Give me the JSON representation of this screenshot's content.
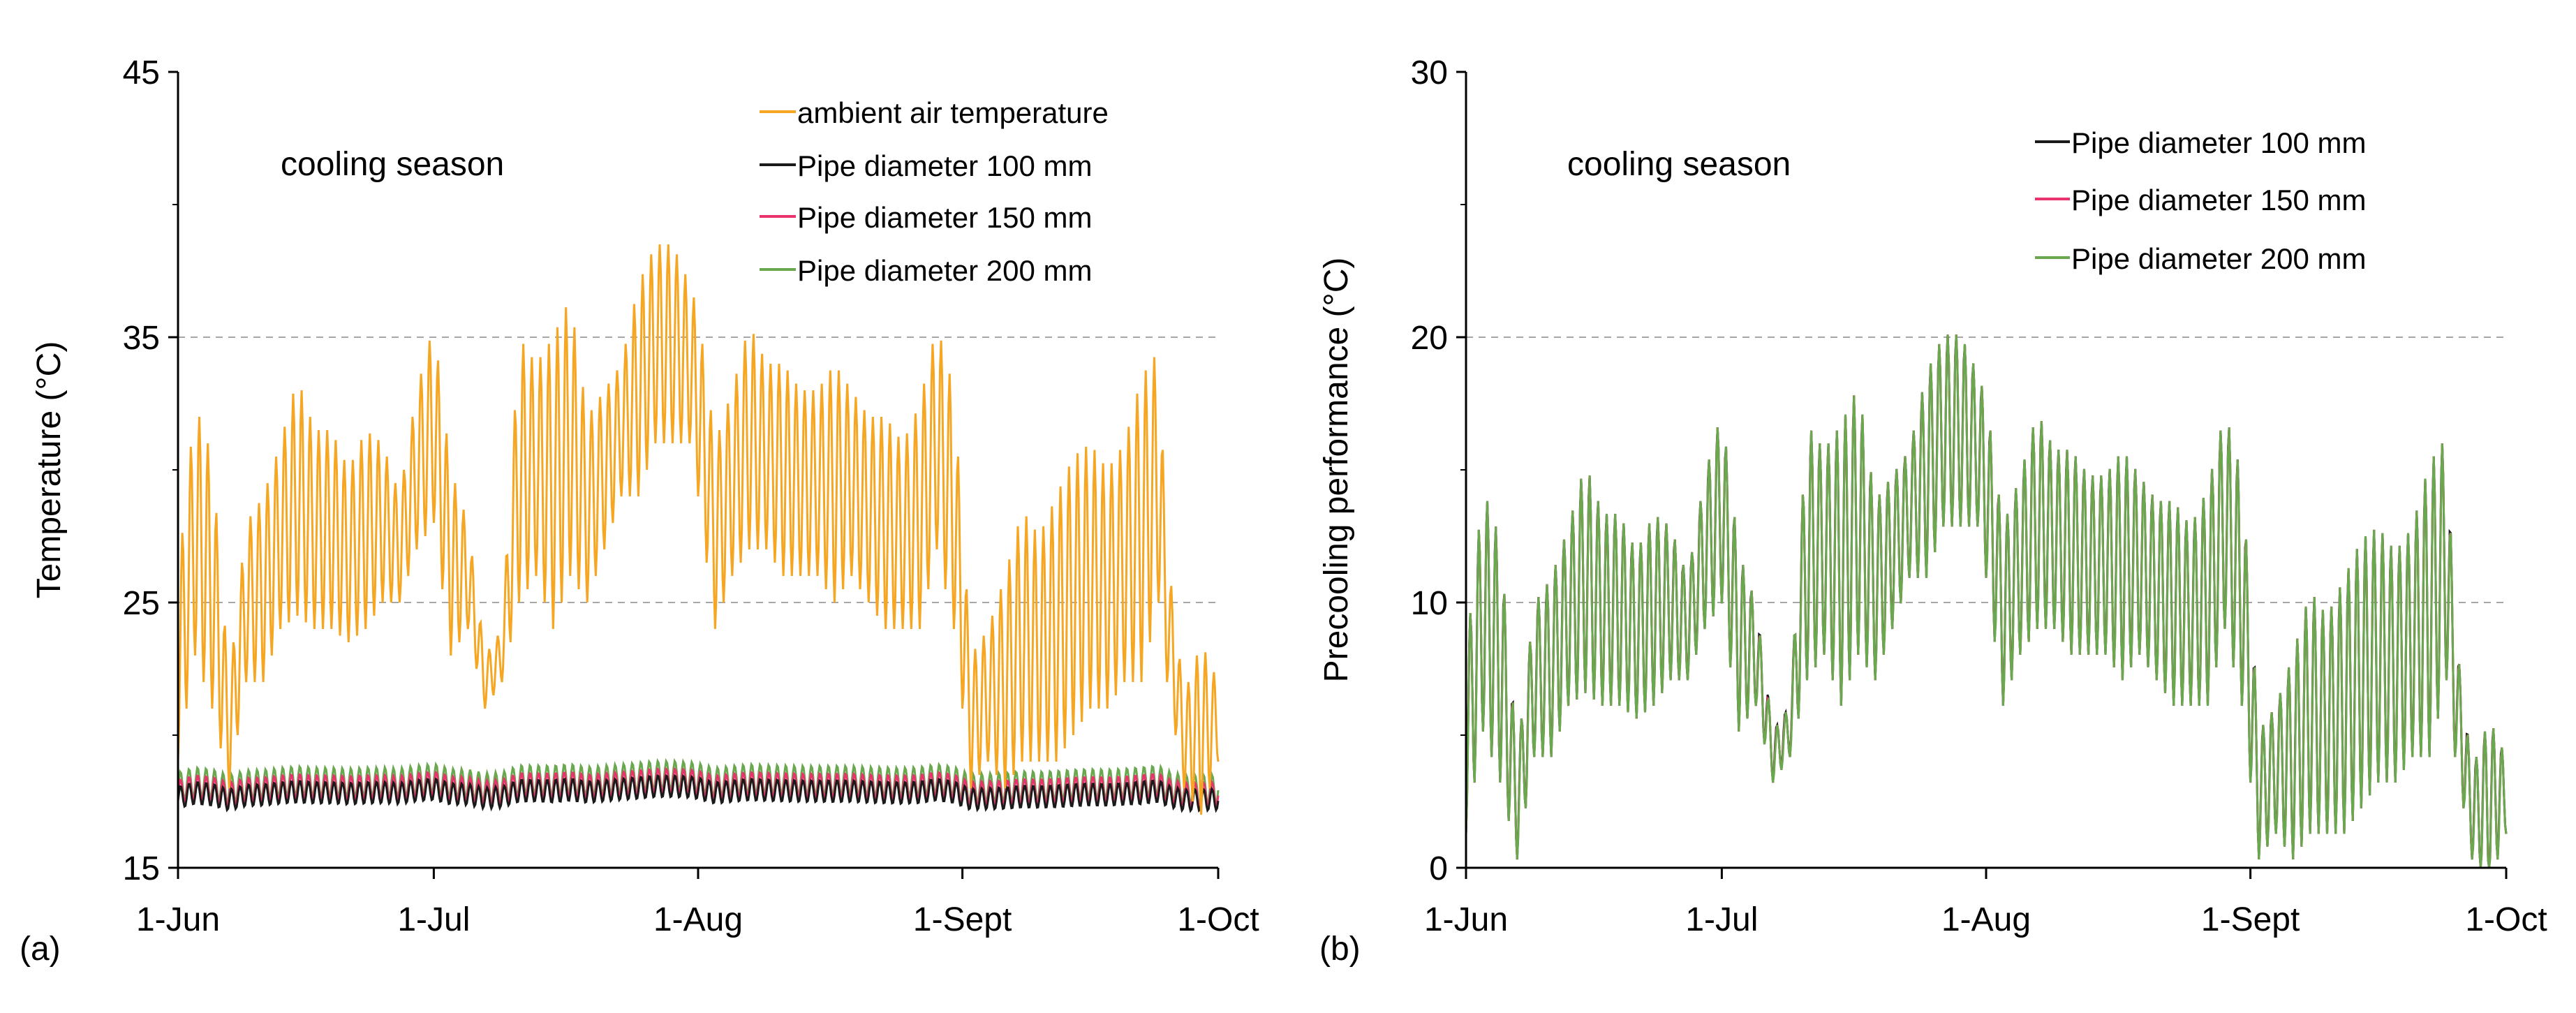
{
  "chart_data": [
    {
      "id": "a",
      "type": "line",
      "panel_label": "(a)",
      "annotation": "cooling season",
      "ylabel": "Temperature (°C)",
      "xlabel": "",
      "ylim": [
        15,
        45
      ],
      "yticks": [
        15,
        25,
        35,
        45
      ],
      "y_gridlines": [
        25,
        35
      ],
      "xlim_day": [
        0,
        122
      ],
      "xticks": [
        {
          "day": 0,
          "label": "1-Jun"
        },
        {
          "day": 30,
          "label": "1-Jul"
        },
        {
          "day": 61,
          "label": "1-Aug"
        },
        {
          "day": 92,
          "label": "1-Sept"
        },
        {
          "day": 122,
          "label": "1-Oct"
        }
      ],
      "legend_position": "top-right",
      "series": [
        {
          "name": "ambient air temperature",
          "color": "#f5a623",
          "daily": [
            {
              "day": 0,
              "min": 19,
              "max": 26
            },
            {
              "day": 2,
              "min": 23,
              "max": 32.5
            },
            {
              "day": 4,
              "min": 21,
              "max": 30.5
            },
            {
              "day": 6,
              "min": 18,
              "max": 22
            },
            {
              "day": 8,
              "min": 22,
              "max": 28
            },
            {
              "day": 10,
              "min": 22,
              "max": 29
            },
            {
              "day": 12,
              "min": 24,
              "max": 31
            },
            {
              "day": 14,
              "min": 24.5,
              "max": 33.5
            },
            {
              "day": 16,
              "min": 24,
              "max": 31.5
            },
            {
              "day": 18,
              "min": 24,
              "max": 31.5
            },
            {
              "day": 20,
              "min": 23.5,
              "max": 30
            },
            {
              "day": 22,
              "min": 24,
              "max": 31.5
            },
            {
              "day": 24,
              "min": 25,
              "max": 31
            },
            {
              "day": 26,
              "min": 25,
              "max": 29
            },
            {
              "day": 28,
              "min": 27,
              "max": 33
            },
            {
              "day": 30,
              "min": 28,
              "max": 35.5
            },
            {
              "day": 32,
              "min": 23,
              "max": 30
            },
            {
              "day": 34,
              "min": 24,
              "max": 28
            },
            {
              "day": 36,
              "min": 21,
              "max": 23
            },
            {
              "day": 38,
              "min": 22,
              "max": 24
            },
            {
              "day": 40,
              "min": 25,
              "max": 35
            },
            {
              "day": 42,
              "min": 26,
              "max": 34
            },
            {
              "day": 44,
              "min": 24,
              "max": 35
            },
            {
              "day": 46,
              "min": 26,
              "max": 36.5
            },
            {
              "day": 48,
              "min": 25,
              "max": 32
            },
            {
              "day": 50,
              "min": 27,
              "max": 33
            },
            {
              "day": 52,
              "min": 29,
              "max": 34
            },
            {
              "day": 54,
              "min": 29,
              "max": 37
            },
            {
              "day": 56,
              "min": 31,
              "max": 38.5
            },
            {
              "day": 58,
              "min": 31,
              "max": 38.5
            },
            {
              "day": 60,
              "min": 31,
              "max": 37
            },
            {
              "day": 61,
              "min": 29,
              "max": 36
            },
            {
              "day": 63,
              "min": 24,
              "max": 31
            },
            {
              "day": 65,
              "min": 26,
              "max": 33
            },
            {
              "day": 67,
              "min": 27,
              "max": 35.5
            },
            {
              "day": 69,
              "min": 27,
              "max": 34
            },
            {
              "day": 71,
              "min": 26,
              "max": 34
            },
            {
              "day": 73,
              "min": 26,
              "max": 33
            },
            {
              "day": 75,
              "min": 26,
              "max": 33
            },
            {
              "day": 77,
              "min": 25,
              "max": 34
            },
            {
              "day": 79,
              "min": 26,
              "max": 33
            },
            {
              "day": 81,
              "min": 25,
              "max": 32
            },
            {
              "day": 83,
              "min": 24,
              "max": 32
            },
            {
              "day": 85,
              "min": 24,
              "max": 31
            },
            {
              "day": 87,
              "min": 24,
              "max": 32.5
            },
            {
              "day": 89,
              "min": 27,
              "max": 35.5
            },
            {
              "day": 91,
              "min": 24,
              "max": 33
            },
            {
              "day": 93,
              "min": 18,
              "max": 23
            },
            {
              "day": 95,
              "min": 19,
              "max": 24
            },
            {
              "day": 97,
              "min": 18,
              "max": 26
            },
            {
              "day": 99,
              "min": 19,
              "max": 28.5
            },
            {
              "day": 101,
              "min": 19,
              "max": 27.5
            },
            {
              "day": 103,
              "min": 19,
              "max": 29
            },
            {
              "day": 105,
              "min": 20,
              "max": 30.5
            },
            {
              "day": 107,
              "min": 21,
              "max": 31
            },
            {
              "day": 109,
              "min": 21,
              "max": 30
            },
            {
              "day": 111,
              "min": 22,
              "max": 31
            },
            {
              "day": 113,
              "min": 22,
              "max": 33.5
            },
            {
              "day": 115,
              "min": 25,
              "max": 34.5
            },
            {
              "day": 116,
              "min": 22,
              "max": 27
            },
            {
              "day": 118,
              "min": 18,
              "max": 21.5
            },
            {
              "day": 120,
              "min": 17,
              "max": 23.5
            },
            {
              "day": 122,
              "min": 19,
              "max": 22
            }
          ]
        },
        {
          "name": "Pipe diameter 100 mm",
          "color": "#1a1a1a",
          "mean_level": 17.8,
          "amplitude": 0.4
        },
        {
          "name": "Pipe diameter 150 mm",
          "color": "#e8336d",
          "mean_level": 18.0,
          "amplitude": 0.45
        },
        {
          "name": "Pipe diameter 200 mm",
          "color": "#6aa84f",
          "mean_level": 18.2,
          "amplitude": 0.55
        }
      ]
    },
    {
      "id": "b",
      "type": "line",
      "panel_label": "(b)",
      "annotation": "cooling season",
      "ylabel": "Precooling performance (°C)",
      "xlabel": "",
      "ylim": [
        0,
        30
      ],
      "yticks": [
        0,
        10,
        20,
        30
      ],
      "y_gridlines": [
        10,
        20
      ],
      "xlim_day": [
        0,
        122
      ],
      "xticks": [
        {
          "day": 0,
          "label": "1-Jun"
        },
        {
          "day": 30,
          "label": "1-Jul"
        },
        {
          "day": 61,
          "label": "1-Aug"
        },
        {
          "day": 92,
          "label": "1-Sept"
        },
        {
          "day": 122,
          "label": "1-Oct"
        }
      ],
      "legend_position": "top-right",
      "series": [
        {
          "name": "Pipe diameter 100 mm",
          "color": "#1a1a1a",
          "offset": 0.35
        },
        {
          "name": "Pipe diameter 150 mm",
          "color": "#e8336d",
          "offset": 0.15
        },
        {
          "name": "Pipe diameter 200 mm",
          "color": "#6aa84f",
          "offset": 0
        }
      ]
    }
  ]
}
